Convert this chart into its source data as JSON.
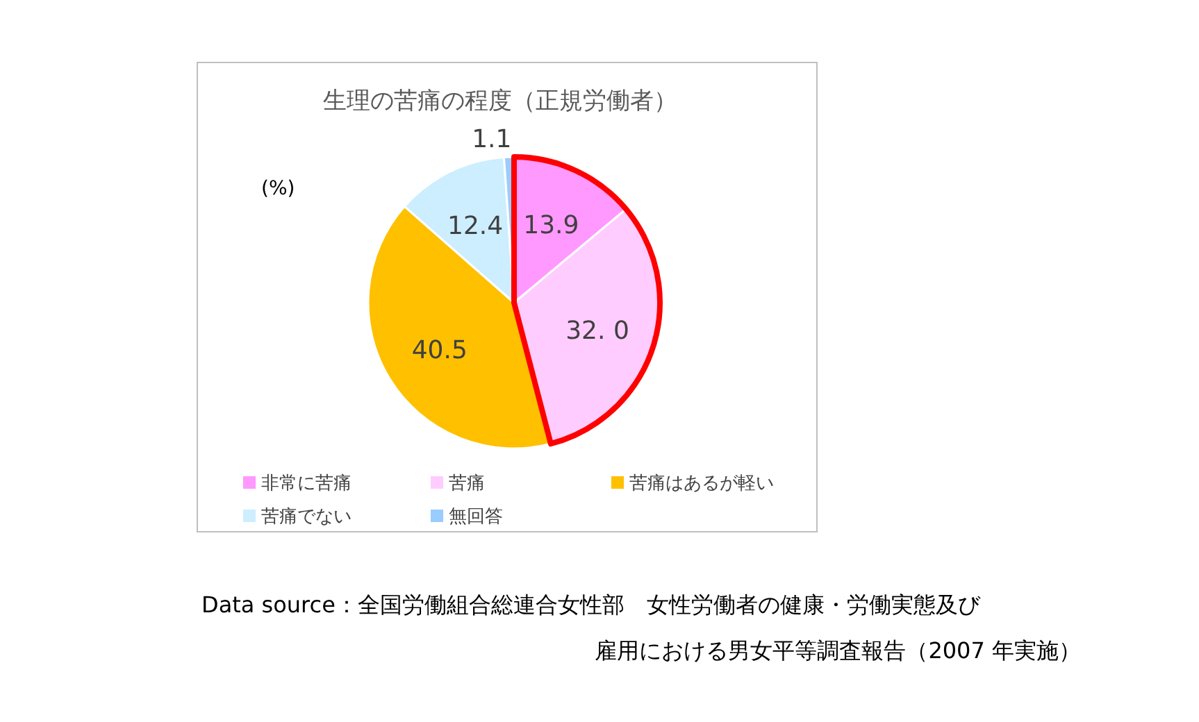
{
  "chart_data": {
    "type": "pie",
    "title": "生理の苦痛の程度（正規労働者）",
    "categories": [
      "非常に苦痛",
      "苦痛",
      "苦痛はあるが軽い",
      "苦痛でない",
      "無回答"
    ],
    "values": [
      13.9,
      32.0,
      40.5,
      12.4,
      1.1
    ],
    "colors": [
      "#ff99ff",
      "#ffccff",
      "#ffc000",
      "#cceeff",
      "#99ccff"
    ],
    "value_labels": [
      "13.9",
      "32. 0",
      "40.5",
      "12.4",
      "1.1"
    ],
    "legend": "bottom",
    "annotations": [
      "(%)",
      "Data source：全国労働組合総連合女性部　女性労働者の健康・労働実態及び",
      "雇用における男女平等調査報告（2007 年実施）"
    ]
  }
}
